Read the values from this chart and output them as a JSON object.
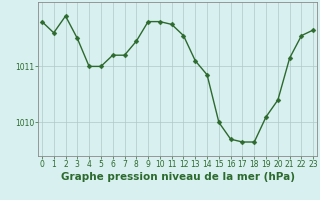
{
  "x": [
    0,
    1,
    2,
    3,
    4,
    5,
    6,
    7,
    8,
    9,
    10,
    11,
    12,
    13,
    14,
    15,
    16,
    17,
    18,
    19,
    20,
    21,
    22,
    23
  ],
  "y": [
    1011.8,
    1011.6,
    1011.9,
    1011.5,
    1011.0,
    1011.0,
    1011.2,
    1011.2,
    1011.45,
    1011.8,
    1011.8,
    1011.75,
    1011.55,
    1011.1,
    1010.85,
    1010.0,
    1009.7,
    1009.65,
    1009.65,
    1010.1,
    1010.4,
    1011.15,
    1011.55,
    1011.65
  ],
  "line_color": "#2d6a2d",
  "marker": "D",
  "marker_size": 2.5,
  "bg_color": "#d8f0f0",
  "grid_color": "#b0c8c8",
  "xlabel": "Graphe pression niveau de la mer (hPa)",
  "xlabel_fontsize": 7.5,
  "ylim": [
    1009.4,
    1012.15
  ],
  "yticks": [
    1010,
    1011
  ],
  "xticks": [
    0,
    1,
    2,
    3,
    4,
    5,
    6,
    7,
    8,
    9,
    10,
    11,
    12,
    13,
    14,
    15,
    16,
    17,
    18,
    19,
    20,
    21,
    22,
    23
  ],
  "tick_fontsize": 5.5,
  "axis_color": "#888888",
  "linewidth": 1.0
}
